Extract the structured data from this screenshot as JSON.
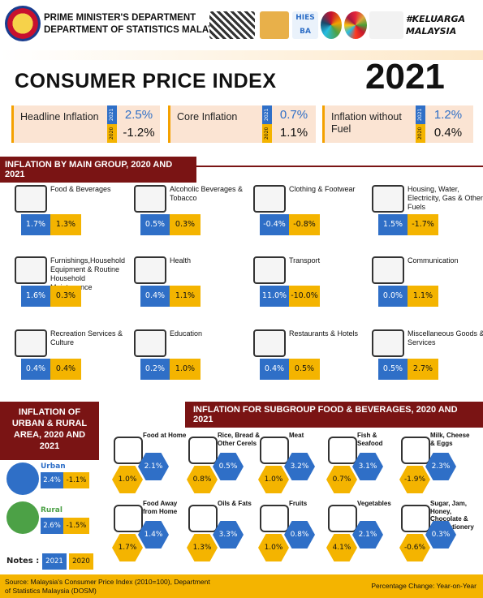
{
  "header": {
    "dept1": "PRIME MINISTER'S DEPARTMENT",
    "dept2": "DEPARTMENT OF STATISTICS MALAYSIA",
    "tag": "#KELUARGA MALAYSIA",
    "hies": "HIES BA"
  },
  "title": "CONSUMER PRICE INDEX",
  "year": "2021",
  "key": [
    {
      "label": "Headline Inflation",
      "v2021": "2.5%",
      "v2020": "-1.2%"
    },
    {
      "label": "Core Inflation",
      "v2021": "0.7%",
      "v2020": "1.1%"
    },
    {
      "label": "Inflation without Fuel",
      "v2021": "1.2%",
      "v2020": "0.4%"
    }
  ],
  "yr2021": "2021",
  "yr2020": "2020",
  "groups_title": "INFLATION BY MAIN GROUP, 2020 AND 2021",
  "groups": [
    {
      "label": "Food & Beverages",
      "b": "1.7%",
      "y": "1.3%",
      "icon": "grocery-bag-icon"
    },
    {
      "label": "Alcoholic Beverages & Tobacco",
      "b": "0.5%",
      "y": "0.3%",
      "icon": "bottles-icon"
    },
    {
      "label": "Clothing & Footwear",
      "b": "-0.4%",
      "y": "-0.8%",
      "icon": "clothing-icon"
    },
    {
      "label": "Housing, Water, Electricity, Gas & Other Fuels",
      "b": "1.5%",
      "y": "-1.7%",
      "icon": "house-icon"
    },
    {
      "label": "Furnishings,Household Equipment & Routine Household Maintenance",
      "b": "1.6%",
      "y": "0.3%",
      "icon": "sofa-icon"
    },
    {
      "label": "Health",
      "b": "0.4%",
      "y": "1.1%",
      "icon": "health-icon"
    },
    {
      "label": "Transport",
      "b": "11.0%",
      "y": "-10.0%",
      "icon": "car-icon"
    },
    {
      "label": "Communication",
      "b": "0.0%",
      "y": "1.1%",
      "icon": "phone-icon"
    },
    {
      "label": "Recreation Services & Culture",
      "b": "0.4%",
      "y": "0.4%",
      "icon": "popcorn-icon"
    },
    {
      "label": "Education",
      "b": "0.2%",
      "y": "1.0%",
      "icon": "book-icon"
    },
    {
      "label": "Restaurants & Hotels",
      "b": "0.4%",
      "y": "0.5%",
      "icon": "restaurant-icon"
    },
    {
      "label": "Miscellaneous Goods & Services",
      "b": "0.5%",
      "y": "2.7%",
      "icon": "card-icon"
    }
  ],
  "area_title": "INFLATION OF URBAN & RURAL AREA, 2020 AND 2021",
  "area": [
    {
      "label": "Urban",
      "b": "2.4%",
      "y": "-1.1%"
    },
    {
      "label": "Rural",
      "b": "2.6%",
      "y": "-1.5%"
    }
  ],
  "notes": "Notes :",
  "sub_title": "INFLATION FOR SUBGROUP FOOD & BEVERAGES, 2020 AND 2021",
  "sub": [
    {
      "label": "Food at Home",
      "b": "2.1%",
      "y": "1.0%"
    },
    {
      "label": "Rice, Bread & Other Cerels",
      "b": "0.5%",
      "y": "0.8%"
    },
    {
      "label": "Meat",
      "b": "3.2%",
      "y": "1.0%"
    },
    {
      "label": "Fish & Seafood",
      "b": "3.1%",
      "y": "0.7%"
    },
    {
      "label": "Milk, Cheese & Eggs",
      "b": "2.3%",
      "y": "-1.9%"
    },
    {
      "label": "Food Away from Home",
      "b": "1.4%",
      "y": "1.7%"
    },
    {
      "label": "Oils & Fats",
      "b": "3.3%",
      "y": "1.3%"
    },
    {
      "label": "Fruits",
      "b": "0.8%",
      "y": "1.0%"
    },
    {
      "label": "Vegetables",
      "b": "2.1%",
      "y": "4.1%"
    },
    {
      "label": "Sugar, Jam, Honey, Chocolate & Confectionery",
      "b": "0.3%",
      "y": "-0.6%"
    }
  ],
  "footer": {
    "source": "Source: Malaysia's Consumer Price Index (2010=100), Department of Statistics Malaysia (DOSM)",
    "pct": "Percentage Change: Year-on-Year"
  },
  "colors": {
    "blue": "#2f6fc7",
    "yellow": "#f4b400",
    "maroon": "#7a1414"
  }
}
